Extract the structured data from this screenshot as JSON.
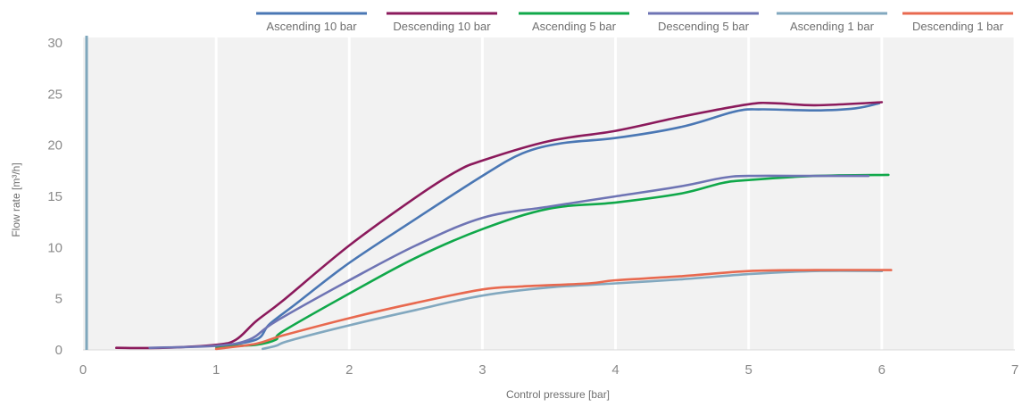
{
  "chart_data": {
    "type": "line",
    "xlabel": "Control pressure [bar]",
    "ylabel": "Flow rate [m³/h]",
    "xlim": [
      0,
      7
    ],
    "ylim": [
      0,
      30
    ],
    "x_ticks": [
      "0",
      "1",
      "2",
      "3",
      "4",
      "5",
      "6",
      "7"
    ],
    "y_ticks": [
      "0",
      "5",
      "10",
      "15",
      "20",
      "25",
      "30"
    ],
    "grid": "vertical",
    "legend_position": "top",
    "series": [
      {
        "name": "Ascending 10 bar",
        "color": "#4a77b4",
        "points": [
          [
            1.0,
            0.3
          ],
          [
            1.3,
            1.0
          ],
          [
            1.4,
            2.5
          ],
          [
            1.6,
            4.5
          ],
          [
            2.0,
            8.5
          ],
          [
            2.5,
            12.8
          ],
          [
            3.0,
            17.0
          ],
          [
            3.3,
            19.2
          ],
          [
            3.6,
            20.2
          ],
          [
            4.0,
            20.7
          ],
          [
            4.5,
            21.8
          ],
          [
            4.9,
            23.3
          ],
          [
            5.1,
            23.5
          ],
          [
            5.5,
            23.4
          ],
          [
            5.8,
            23.6
          ],
          [
            5.98,
            24.1
          ]
        ]
      },
      {
        "name": "Descending 10 bar",
        "color": "#8b1a5c",
        "points": [
          [
            0.25,
            0.2
          ],
          [
            0.6,
            0.2
          ],
          [
            1.0,
            0.5
          ],
          [
            1.15,
            1.0
          ],
          [
            1.3,
            2.8
          ],
          [
            1.5,
            4.8
          ],
          [
            2.0,
            10.2
          ],
          [
            2.5,
            14.9
          ],
          [
            2.8,
            17.4
          ],
          [
            3.0,
            18.5
          ],
          [
            3.5,
            20.4
          ],
          [
            4.0,
            21.4
          ],
          [
            4.5,
            22.8
          ],
          [
            5.0,
            24.0
          ],
          [
            5.2,
            24.1
          ],
          [
            5.5,
            23.9
          ],
          [
            6.0,
            24.2
          ]
        ]
      },
      {
        "name": "Ascending 5 bar",
        "color": "#10a84a",
        "points": [
          [
            1.0,
            0.3
          ],
          [
            1.3,
            0.5
          ],
          [
            1.45,
            1.0
          ],
          [
            1.5,
            1.8
          ],
          [
            2.0,
            5.5
          ],
          [
            2.5,
            9.0
          ],
          [
            3.0,
            11.8
          ],
          [
            3.5,
            13.8
          ],
          [
            4.0,
            14.4
          ],
          [
            4.5,
            15.3
          ],
          [
            4.8,
            16.3
          ],
          [
            5.0,
            16.6
          ],
          [
            5.5,
            17.0
          ],
          [
            6.05,
            17.1
          ]
        ]
      },
      {
        "name": "Descending 5 bar",
        "color": "#6e74b4",
        "points": [
          [
            0.5,
            0.2
          ],
          [
            1.0,
            0.4
          ],
          [
            1.25,
            1.0
          ],
          [
            1.45,
            2.8
          ],
          [
            2.0,
            6.8
          ],
          [
            2.5,
            10.2
          ],
          [
            3.0,
            12.9
          ],
          [
            3.5,
            14.0
          ],
          [
            4.0,
            15.0
          ],
          [
            4.5,
            16.0
          ],
          [
            4.8,
            16.8
          ],
          [
            5.0,
            17.0
          ],
          [
            5.5,
            17.0
          ],
          [
            5.9,
            17.0
          ]
        ]
      },
      {
        "name": "Ascending 1 bar",
        "color": "#82a8bf",
        "points": [
          [
            1.35,
            0.1
          ],
          [
            1.45,
            0.4
          ],
          [
            1.55,
            0.9
          ],
          [
            2.0,
            2.4
          ],
          [
            2.5,
            3.9
          ],
          [
            3.0,
            5.3
          ],
          [
            3.5,
            6.1
          ],
          [
            4.0,
            6.5
          ],
          [
            4.5,
            6.9
          ],
          [
            5.0,
            7.4
          ],
          [
            5.5,
            7.7
          ],
          [
            6.0,
            7.7
          ]
        ]
      },
      {
        "name": "Descending 1 bar",
        "color": "#e8694f",
        "points": [
          [
            1.0,
            0.1
          ],
          [
            1.3,
            0.6
          ],
          [
            1.5,
            1.4
          ],
          [
            2.0,
            3.1
          ],
          [
            2.5,
            4.6
          ],
          [
            3.0,
            5.9
          ],
          [
            3.3,
            6.2
          ],
          [
            3.8,
            6.5
          ],
          [
            4.0,
            6.8
          ],
          [
            4.5,
            7.2
          ],
          [
            5.0,
            7.7
          ],
          [
            5.5,
            7.8
          ],
          [
            6.07,
            7.8
          ]
        ]
      }
    ]
  }
}
